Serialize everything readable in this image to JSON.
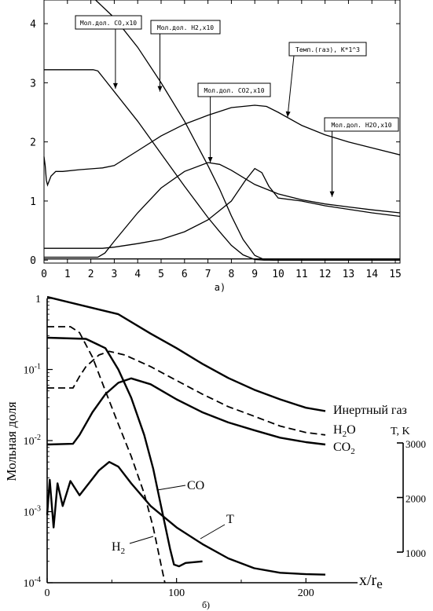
{
  "chart_data": [
    {
      "type": "line",
      "caption": "а)",
      "xlim": [
        0,
        15.2
      ],
      "ylim": [
        -0.05,
        4.4
      ],
      "x_ticks": [
        0,
        1,
        2,
        3,
        4,
        5,
        6,
        7,
        8,
        9,
        10,
        11,
        12,
        13,
        14,
        15
      ],
      "y_ticks": [
        0,
        1,
        2,
        3,
        4
      ],
      "grid": false,
      "series": [
        {
          "name": "Мол.дол. CO,x10",
          "points": [
            [
              0,
              3.22
            ],
            [
              2.1,
              3.22
            ],
            [
              2.3,
              3.2
            ],
            [
              2.6,
              3.05
            ],
            [
              3,
              2.85
            ],
            [
              4,
              2.35
            ],
            [
              5,
              1.8
            ],
            [
              6,
              1.25
            ],
            [
              7,
              0.72
            ],
            [
              7.5,
              0.48
            ],
            [
              8,
              0.25
            ],
            [
              8.5,
              0.09
            ],
            [
              9,
              0.01
            ],
            [
              9.4,
              0
            ],
            [
              15.2,
              0
            ]
          ]
        },
        {
          "name": "Мол.дол. H2,x10",
          "points": [
            [
              2.2,
              4.4
            ],
            [
              3,
              4.1
            ],
            [
              4,
              3.6
            ],
            [
              5,
              3.0
            ],
            [
              6,
              2.35
            ],
            [
              7,
              1.6
            ],
            [
              7.5,
              1.2
            ],
            [
              8,
              0.75
            ],
            [
              8.5,
              0.35
            ],
            [
              9,
              0.08
            ],
            [
              9.4,
              0.01
            ],
            [
              9.8,
              0
            ],
            [
              15.2,
              0
            ]
          ]
        },
        {
          "name": "Темп.(газ), K*1^3",
          "points": [
            [
              0,
              1.75
            ],
            [
              0.05,
              1.6
            ],
            [
              0.1,
              1.35
            ],
            [
              0.15,
              1.27
            ],
            [
              0.3,
              1.42
            ],
            [
              0.5,
              1.5
            ],
            [
              0.8,
              1.5
            ],
            [
              1.5,
              1.53
            ],
            [
              2.5,
              1.56
            ],
            [
              3,
              1.6
            ],
            [
              4,
              1.85
            ],
            [
              5,
              2.1
            ],
            [
              6,
              2.3
            ],
            [
              7,
              2.45
            ],
            [
              8,
              2.58
            ],
            [
              9,
              2.62
            ],
            [
              9.5,
              2.6
            ],
            [
              10,
              2.5
            ],
            [
              11,
              2.28
            ],
            [
              12,
              2.12
            ],
            [
              13,
              2.0
            ],
            [
              14,
              1.9
            ],
            [
              15.2,
              1.78
            ]
          ]
        },
        {
          "name": "Мол.дол. CO2,x10",
          "points": [
            [
              0,
              0.05
            ],
            [
              2.3,
              0.05
            ],
            [
              2.6,
              0.12
            ],
            [
              3,
              0.32
            ],
            [
              4,
              0.8
            ],
            [
              5,
              1.22
            ],
            [
              6,
              1.5
            ],
            [
              7,
              1.65
            ],
            [
              7.5,
              1.62
            ],
            [
              8,
              1.52
            ],
            [
              9,
              1.28
            ],
            [
              10,
              1.12
            ],
            [
              11,
              1.02
            ],
            [
              12,
              0.95
            ],
            [
              13,
              0.9
            ],
            [
              14,
              0.85
            ],
            [
              15.2,
              0.8
            ]
          ]
        },
        {
          "name": "Мол.дол. H2O,x10",
          "points": [
            [
              0,
              0.2
            ],
            [
              2.5,
              0.2
            ],
            [
              3,
              0.22
            ],
            [
              4,
              0.28
            ],
            [
              5,
              0.35
            ],
            [
              6,
              0.48
            ],
            [
              7,
              0.68
            ],
            [
              8,
              1.0
            ],
            [
              8.6,
              1.35
            ],
            [
              9,
              1.55
            ],
            [
              9.3,
              1.48
            ],
            [
              9.6,
              1.25
            ],
            [
              10,
              1.05
            ],
            [
              11,
              1.0
            ],
            [
              12,
              0.92
            ],
            [
              13,
              0.86
            ],
            [
              14,
              0.8
            ],
            [
              15.2,
              0.74
            ]
          ]
        },
        {
          "name": "",
          "points": [
            [
              0,
              0.02
            ],
            [
              15.2,
              0.02
            ]
          ]
        }
      ],
      "annotations": [
        {
          "text": "Мол.дол. CO,x10",
          "target": [
            3.05,
            2.9
          ]
        },
        {
          "text": "Мол.дол. H2,x10",
          "target": [
            4.95,
            2.85
          ]
        },
        {
          "text": "Мол.дол. CO2,x10",
          "target": [
            7.1,
            1.65
          ]
        },
        {
          "text": "Темп.(газ), K*1^3",
          "target": [
            10.4,
            2.42
          ]
        },
        {
          "text": "Мол.дол. H2O,x10",
          "target": [
            12.3,
            1.07
          ]
        }
      ]
    },
    {
      "type": "line",
      "caption": "б)",
      "y_scale": "log",
      "xlim": [
        0,
        215
      ],
      "ylim": [
        0.0001,
        1
      ],
      "x_ticks": [
        0,
        100,
        200
      ],
      "xlabel": "x/r",
      "xlabel_sub": "e",
      "ylabel": "Мольная доля",
      "y_tick_labels": [
        {
          "v": 1,
          "base": "1",
          "exp": ""
        },
        {
          "v": 0.1,
          "base": "10",
          "exp": "-1"
        },
        {
          "v": 0.01,
          "base": "10",
          "exp": "-2"
        },
        {
          "v": 0.001,
          "base": "10",
          "exp": "-3"
        },
        {
          "v": 0.0001,
          "base": "10",
          "exp": "-4"
        }
      ],
      "right_axis": {
        "label": "T, K",
        "ticks": [
          1000,
          2000,
          3000
        ]
      },
      "series": [
        {
          "name": "Инертный газ",
          "style": "solid",
          "label": {
            "base": "Инертный газ",
            "sub": ""
          },
          "points": [
            [
              0,
              1.05
            ],
            [
              55,
              0.6
            ],
            [
              80,
              0.32
            ],
            [
              100,
              0.2
            ],
            [
              120,
              0.12
            ],
            [
              140,
              0.076
            ],
            [
              160,
              0.052
            ],
            [
              180,
              0.038
            ],
            [
              200,
              0.029
            ],
            [
              215,
              0.026
            ]
          ]
        },
        {
          "name": "H2O",
          "style": "dashed",
          "label": {
            "base": "H",
            "sub": "2",
            "tail": "O"
          },
          "points": [
            [
              0,
              0.055
            ],
            [
              20,
              0.055
            ],
            [
              25,
              0.08
            ],
            [
              30,
              0.11
            ],
            [
              40,
              0.16
            ],
            [
              48,
              0.18
            ],
            [
              60,
              0.16
            ],
            [
              80,
              0.11
            ],
            [
              100,
              0.07
            ],
            [
              120,
              0.045
            ],
            [
              140,
              0.03
            ],
            [
              160,
              0.022
            ],
            [
              180,
              0.016
            ],
            [
              200,
              0.013
            ],
            [
              215,
              0.012
            ]
          ]
        },
        {
          "name": "CO2",
          "style": "solid",
          "label": {
            "base": "CO",
            "sub": "2",
            "tail": ""
          },
          "points": [
            [
              0,
              0.0088
            ],
            [
              20,
              0.009
            ],
            [
              25,
              0.012
            ],
            [
              35,
              0.025
            ],
            [
              45,
              0.045
            ],
            [
              55,
              0.065
            ],
            [
              65,
              0.075
            ],
            [
              80,
              0.062
            ],
            [
              100,
              0.038
            ],
            [
              120,
              0.025
            ],
            [
              140,
              0.018
            ],
            [
              160,
              0.014
            ],
            [
              180,
              0.011
            ],
            [
              200,
              0.0095
            ],
            [
              215,
              0.0088
            ]
          ]
        },
        {
          "name": "CO",
          "style": "solid",
          "label": {
            "base": "CO",
            "sub": "",
            "tail": ""
          },
          "points": [
            [
              0,
              0.28
            ],
            [
              30,
              0.27
            ],
            [
              45,
              0.2
            ],
            [
              55,
              0.1
            ],
            [
              65,
              0.04
            ],
            [
              75,
              0.012
            ],
            [
              82,
              0.004
            ],
            [
              88,
              0.0012
            ],
            [
              95,
              0.0003
            ],
            [
              98,
              0.00018
            ],
            [
              102,
              0.00017
            ],
            [
              107,
              0.00019
            ],
            [
              120,
              0.0002
            ]
          ]
        },
        {
          "name": "H2",
          "style": "dashed",
          "label": {
            "base": "H",
            "sub": "2",
            "tail": ""
          },
          "points": [
            [
              0,
              0.4
            ],
            [
              18,
              0.4
            ],
            [
              25,
              0.33
            ],
            [
              35,
              0.15
            ],
            [
              45,
              0.05
            ],
            [
              55,
              0.017
            ],
            [
              65,
              0.006
            ],
            [
              75,
              0.0018
            ],
            [
              82,
              0.0006
            ],
            [
              88,
              0.00018
            ],
            [
              91,
              0.0001
            ]
          ]
        },
        {
          "name": "T",
          "style": "solid",
          "label": {
            "base": "T",
            "sub": "",
            "tail": ""
          },
          "points": [
            [
              0,
              0.0009
            ],
            [
              2,
              0.0028
            ],
            [
              5,
              0.0006
            ],
            [
              8,
              0.0025
            ],
            [
              12,
              0.0012
            ],
            [
              18,
              0.0027
            ],
            [
              25,
              0.0017
            ],
            [
              33,
              0.0026
            ],
            [
              40,
              0.0038
            ],
            [
              48,
              0.005
            ],
            [
              55,
              0.0043
            ],
            [
              65,
              0.0025
            ],
            [
              80,
              0.0012
            ],
            [
              100,
              0.0006
            ],
            [
              120,
              0.00035
            ],
            [
              140,
              0.00022
            ],
            [
              160,
              0.00016
            ],
            [
              180,
              0.000138
            ],
            [
              200,
              0.000132
            ],
            [
              215,
              0.00013
            ]
          ]
        }
      ]
    }
  ]
}
